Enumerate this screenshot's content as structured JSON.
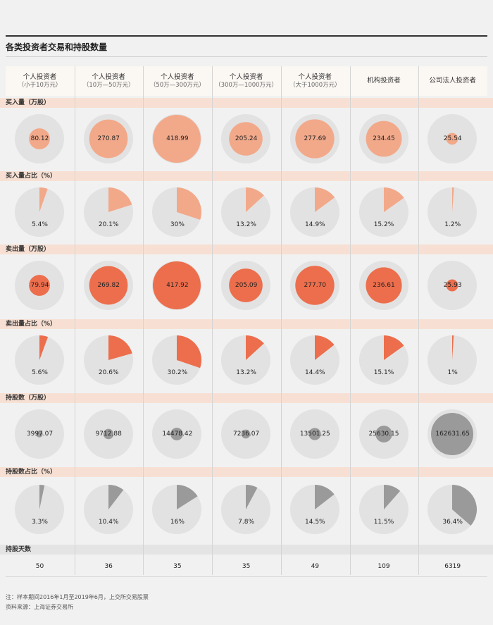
{
  "title": "各类投资者交易和持股数量",
  "columns": [
    {
      "label": "个人投资者",
      "sub": "（小于10万元）"
    },
    {
      "label": "个人投资者",
      "sub": "（10万—50万元）"
    },
    {
      "label": "个人投资者",
      "sub": "（50万—300万元）"
    },
    {
      "label": "个人投资者",
      "sub": "（300万—1000万元）"
    },
    {
      "label": "个人投资者",
      "sub": "（大于1000万元）"
    },
    {
      "label": "机构投资者",
      "sub": ""
    },
    {
      "label": "公司法人投资者",
      "sub": ""
    }
  ],
  "colors": {
    "buy": "#f2a98a",
    "sell": "#ec6e4c",
    "hold": "#9a9a9a",
    "disc": "#e2e2e2",
    "band_orange": "#f7e0d3",
    "band_gray": "#e4e4e4"
  },
  "sections": {
    "buy_volume": "买入量（万股）",
    "buy_share": "买入量占比（%）",
    "sell_volume": "卖出量（万股）",
    "sell_share": "卖出量占比（%）",
    "holdings": "持股数（万股）",
    "holdings_share": "持股数占比（%）",
    "holding_days": "持股天数"
  },
  "chart_data": {
    "type": "table",
    "rows": {
      "buy_volume": [
        "80.12",
        "270.87",
        "418.99",
        "205.24",
        "277.69",
        "234.45",
        "25.54"
      ],
      "buy_share": [
        "5.4%",
        "20.1%",
        "30%",
        "13.2%",
        "14.9%",
        "15.2%",
        "1.2%"
      ],
      "sell_volume": [
        "79.94",
        "269.82",
        "417.92",
        "205.09",
        "277.70",
        "236.61",
        "25.93"
      ],
      "sell_share": [
        "5.6%",
        "20.6%",
        "30.2%",
        "13.2%",
        "14.4%",
        "15.1%",
        "1%"
      ],
      "holdings": [
        "3997.07",
        "9712.88",
        "14478.42",
        "7236.07",
        "13501.25",
        "25630.15",
        "162631.65"
      ],
      "holdings_share": [
        "3.3%",
        "10.4%",
        "16%",
        "7.8%",
        "14.5%",
        "11.5%",
        "36.4%"
      ],
      "holding_days": [
        "50",
        "36",
        "35",
        "35",
        "49",
        "109",
        "6319"
      ]
    }
  },
  "notes": {
    "note1": "注：样本期间2016年1月至2019年6月，上交所交易股票",
    "note2": "资料来源：上海证券交易所"
  }
}
